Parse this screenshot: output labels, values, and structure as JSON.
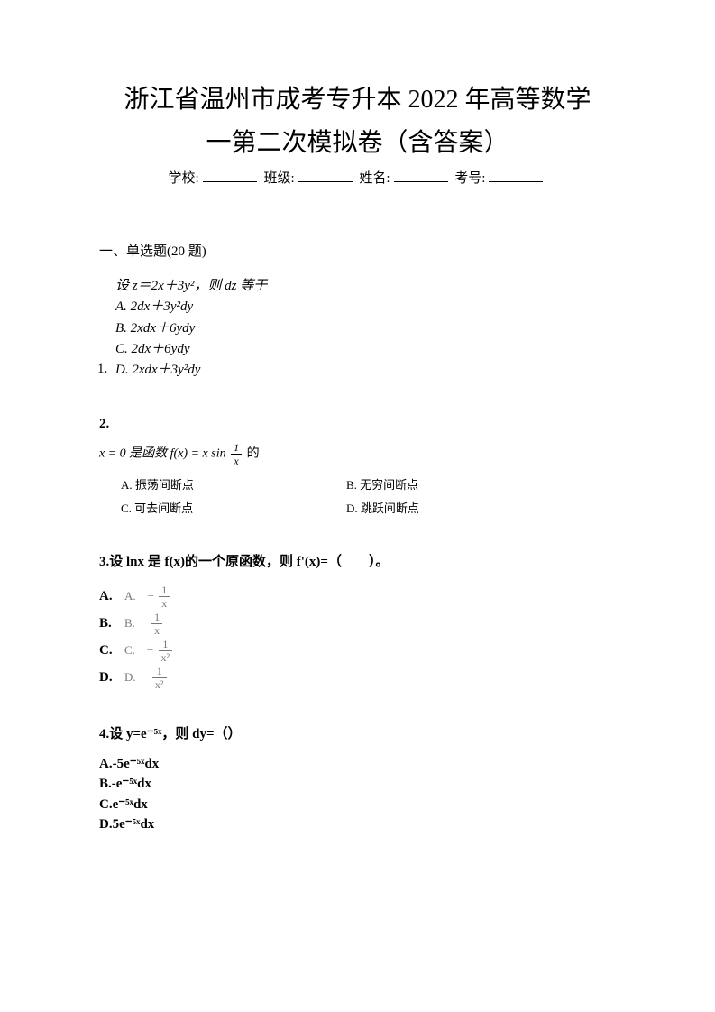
{
  "title_line1": "浙江省温州市成考专升本 2022 年高等数学",
  "title_line2": "一第二次模拟卷（含答案）",
  "info": {
    "school_label": "学校:",
    "class_label": "班级:",
    "name_label": "姓名:",
    "exam_no_label": "考号:"
  },
  "section1_title": "一、单选题(20 题)",
  "q1": {
    "num": "1.",
    "stem": "设 z＝2x＋3y²，则 dz 等于",
    "optA": "A. 2dx＋3y²dy",
    "optB": "B. 2xdx＋6ydy",
    "optC": "C. 2dx＋6ydy",
    "optD": "D. 2xdx＋3y²dy"
  },
  "q2": {
    "num": "2.",
    "stem_prefix": "x = 0 是函数 f(x) = x sin",
    "stem_suffix": " 的",
    "frac_num": "1",
    "frac_den": "x",
    "optA": "A.  振荡间断点",
    "optB": "B.  无穷间断点",
    "optC": "C.  可去间断点",
    "optD": "D.  跳跃间断点"
  },
  "q3": {
    "stem": "3.设 lnx 是 f(x)的一个原函数，则 f'(x)=（　　）。",
    "labelA": "A.",
    "labelB": "B.",
    "labelC": "C.",
    "labelD": "D.",
    "mathA_prefix": "A.　−",
    "mathB_prefix": "B.　",
    "mathC_prefix": "C.　−",
    "mathD_prefix": "D.　",
    "fracA_num": "1",
    "fracA_den": "x",
    "fracB_num": "1",
    "fracB_den": "x",
    "fracC_num": "1",
    "fracC_den": "x²",
    "fracD_num": "1",
    "fracD_den": "x²"
  },
  "q4": {
    "stem": "4.设 y=e⁻⁵ˣ，则 dy=（）",
    "optA": "A.-5e⁻⁵ˣdx",
    "optB": "B.-e⁻⁵ˣdx",
    "optC": "C.e⁻⁵ˣdx",
    "optD": "D.5e⁻⁵ˣdx"
  },
  "colors": {
    "text": "#000000",
    "bg": "#ffffff",
    "faded_math": "#777777"
  }
}
